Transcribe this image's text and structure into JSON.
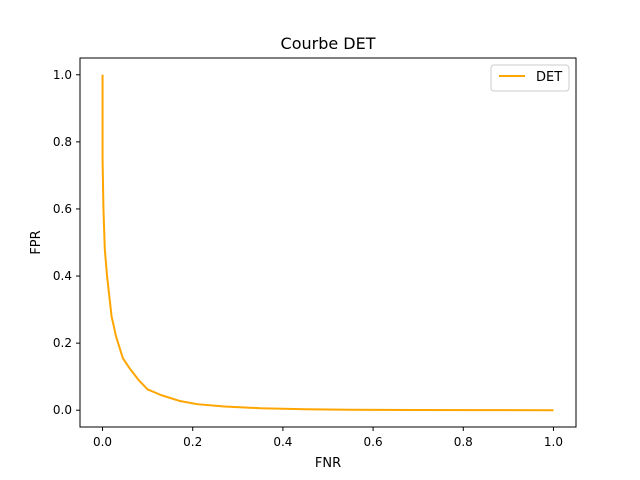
{
  "chart_data": {
    "type": "line",
    "title": "Courbe DET",
    "xlabel": "FNR",
    "ylabel": "FPR",
    "xlim": [
      -0.05,
      1.05
    ],
    "ylim": [
      -0.05,
      1.05
    ],
    "xticks": [
      "0.0",
      "0.2",
      "0.4",
      "0.6",
      "0.8",
      "1.0"
    ],
    "yticks": [
      "0.0",
      "0.2",
      "0.4",
      "0.6",
      "0.8",
      "1.0"
    ],
    "grid": false,
    "legend_position": "top-right",
    "series": [
      {
        "name": "DET",
        "color": "#FFA500",
        "x": [
          0.0,
          0.0,
          0.002,
          0.005,
          0.01,
          0.02,
          0.03,
          0.045,
          0.06,
          0.08,
          0.1,
          0.13,
          0.17,
          0.21,
          0.27,
          0.35,
          0.45,
          0.55,
          0.7,
          0.85,
          1.0
        ],
        "y": [
          1.0,
          0.75,
          0.6,
          0.48,
          0.4,
          0.28,
          0.22,
          0.155,
          0.125,
          0.09,
          0.062,
          0.045,
          0.028,
          0.018,
          0.011,
          0.006,
          0.003,
          0.0015,
          0.0008,
          0.0003,
          0.0
        ]
      }
    ]
  }
}
